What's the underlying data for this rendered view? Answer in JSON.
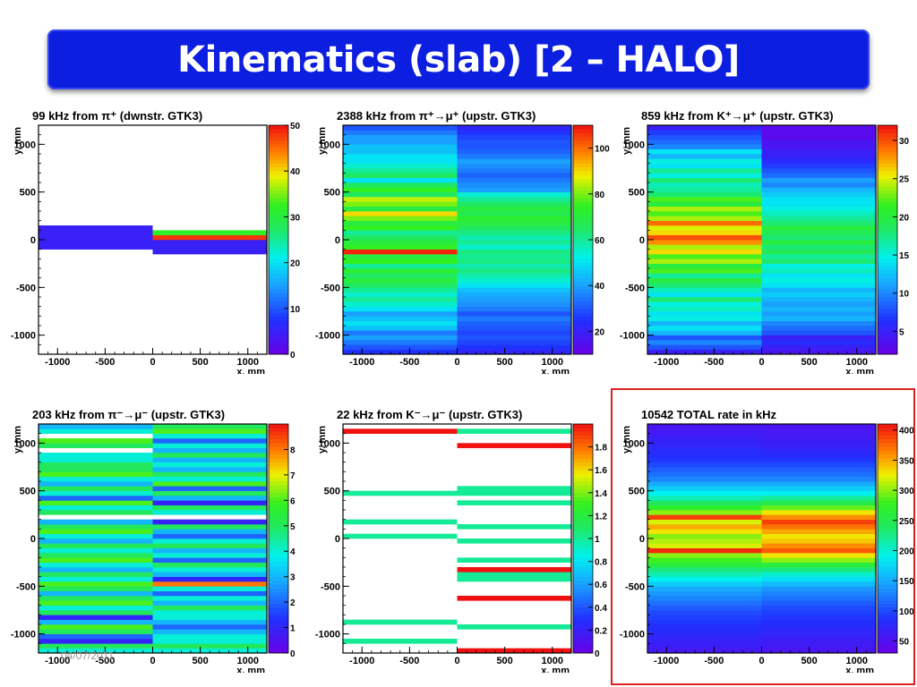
{
  "slide": {
    "title": "Kinematics (slab) [2 – HALO]",
    "footer_date": "04/07/2011"
  },
  "chart_data": [
    {
      "type": "heatmap",
      "title": "99 kHz from π⁺ (dwnstr. GTK3)",
      "xlabel": "x, mm",
      "ylabel": "y, mm",
      "xlim": [
        -1200,
        1200
      ],
      "ylim": [
        -1200,
        1200
      ],
      "x_ticks": [
        "-1000",
        "-500",
        "0",
        "500",
        "1000"
      ],
      "y_ticks": [
        "1000",
        "500",
        "0",
        "-500",
        "-1000"
      ],
      "zlim": [
        0,
        50
      ],
      "z_ticks": [
        "0",
        "10",
        "20",
        "30",
        "40",
        "50"
      ],
      "x_bins": [
        -1200,
        0,
        1200
      ],
      "y_bins": [
        -1200,
        -1150,
        -1100,
        -1050,
        -1000,
        -950,
        -900,
        -850,
        -800,
        -750,
        -700,
        -650,
        -600,
        -550,
        -500,
        -450,
        -400,
        -350,
        -300,
        -250,
        -200,
        -150,
        -100,
        -50,
        0,
        50,
        100,
        150,
        200,
        250,
        300,
        350,
        400,
        450,
        500,
        550,
        600,
        650,
        700,
        750,
        800,
        850,
        900,
        950,
        1000,
        1050,
        1100,
        1150,
        1200
      ],
      "columns": [
        [
          0,
          0,
          0,
          0,
          0,
          0,
          0,
          0,
          0,
          0,
          0,
          0,
          0,
          0,
          0,
          0,
          0,
          0,
          0,
          0,
          0,
          0,
          5,
          5,
          5,
          5,
          5,
          0,
          0,
          0,
          0,
          0,
          0,
          0,
          0,
          0,
          0,
          0,
          0,
          0,
          0,
          0,
          0,
          0,
          0,
          0,
          0,
          0
        ],
        [
          0,
          0,
          0,
          0,
          0,
          0,
          0,
          0,
          0,
          0,
          0,
          0,
          0,
          0,
          0,
          0,
          0,
          0,
          0,
          0,
          0,
          5,
          5,
          5,
          48,
          32,
          0,
          0,
          0,
          0,
          0,
          0,
          0,
          0,
          0,
          0,
          0,
          0,
          0,
          0,
          0,
          0,
          0,
          0,
          0,
          0,
          0,
          0
        ]
      ]
    },
    {
      "type": "heatmap",
      "title": "2388 kHz from π⁺→μ⁺ (upstr. GTK3)",
      "xlabel": "x, mm",
      "ylabel": "y, mm",
      "xlim": [
        -1200,
        1200
      ],
      "ylim": [
        -1200,
        1200
      ],
      "x_ticks": [
        "-1000",
        "-500",
        "0",
        "500",
        "1000"
      ],
      "y_ticks": [
        "1000",
        "500",
        "0",
        "-500",
        "-1000"
      ],
      "zlim": [
        10,
        110
      ],
      "z_ticks": [
        "20",
        "40",
        "60",
        "80",
        "100"
      ],
      "x_bins": [
        -1200,
        0,
        1200
      ],
      "y_bins": [
        -1200,
        -1150,
        -1100,
        -1050,
        -1000,
        -950,
        -900,
        -850,
        -800,
        -750,
        -700,
        -650,
        -600,
        -550,
        -500,
        -450,
        -400,
        -350,
        -300,
        -250,
        -200,
        -150,
        -100,
        -50,
        0,
        50,
        100,
        150,
        200,
        250,
        300,
        350,
        400,
        450,
        500,
        550,
        600,
        650,
        700,
        750,
        800,
        850,
        900,
        950,
        1000,
        1050,
        1100,
        1150,
        1200
      ],
      "columns": [
        [
          25,
          30,
          35,
          40,
          35,
          45,
          50,
          45,
          40,
          50,
          55,
          60,
          55,
          60,
          65,
          70,
          65,
          72,
          60,
          75,
          70,
          108,
          75,
          70,
          65,
          60,
          75,
          70,
          80,
          90,
          70,
          80,
          85,
          65,
          75,
          65,
          50,
          65,
          60,
          55,
          50,
          50,
          45,
          45,
          40,
          40,
          35,
          30
        ],
        [
          22,
          25,
          28,
          30,
          28,
          30,
          32,
          35,
          30,
          35,
          38,
          40,
          42,
          45,
          50,
          55,
          58,
          62,
          58,
          62,
          60,
          62,
          55,
          60,
          58,
          62,
          65,
          70,
          72,
          68,
          70,
          65,
          60,
          55,
          40,
          38,
          35,
          32,
          35,
          38,
          40,
          35,
          32,
          30,
          30,
          28,
          25,
          22
        ]
      ]
    },
    {
      "type": "heatmap",
      "title": "859 kHz from K⁺→μ⁺ (upstr. GTK3)",
      "xlabel": "x, mm",
      "ylabel": "y, mm",
      "xlim": [
        -1200,
        1200
      ],
      "ylim": [
        -1200,
        1200
      ],
      "x_ticks": [
        "-1000",
        "-500",
        "0",
        "500",
        "1000"
      ],
      "y_ticks": [
        "1000",
        "500",
        "0",
        "-500",
        "-1000"
      ],
      "zlim": [
        2,
        32
      ],
      "z_ticks": [
        "5",
        "10",
        "15",
        "20",
        "25",
        "30"
      ],
      "x_bins": [
        -1200,
        0,
        1200
      ],
      "y_bins": [
        -1200,
        -1150,
        -1100,
        -1050,
        -1000,
        -950,
        -900,
        -850,
        -800,
        -750,
        -700,
        -650,
        -600,
        -550,
        -500,
        -450,
        -400,
        -350,
        -300,
        -250,
        -200,
        -150,
        -100,
        -50,
        0,
        50,
        100,
        150,
        200,
        250,
        300,
        350,
        400,
        450,
        500,
        550,
        600,
        650,
        700,
        750,
        800,
        850,
        900,
        950,
        1000,
        1050,
        1100,
        1150,
        1200
      ],
      "columns": [
        [
          5,
          8,
          10,
          8,
          12,
          14,
          12,
          15,
          14,
          16,
          15,
          18,
          14,
          16,
          18,
          20,
          17,
          22,
          20,
          24,
          22,
          26,
          24,
          28,
          30,
          26,
          25,
          29,
          24,
          22,
          24,
          20,
          22,
          18,
          17,
          16,
          18,
          15,
          17,
          14,
          15,
          12,
          14,
          10,
          9,
          8,
          7,
          5
        ],
        [
          4,
          5,
          6,
          5,
          8,
          9,
          10,
          12,
          11,
          12,
          11,
          12,
          13,
          12,
          14,
          15,
          14,
          16,
          15,
          18,
          17,
          19,
          18,
          20,
          18,
          19,
          20,
          18,
          17,
          16,
          15,
          14,
          14,
          13,
          12,
          10,
          11,
          9,
          8,
          7,
          6,
          5,
          5,
          4,
          4,
          3,
          3,
          3
        ]
      ]
    },
    {
      "type": "heatmap",
      "title": "203 kHz from π⁻→μ⁻ (upstr. GTK3)",
      "xlabel": "x, mm",
      "ylabel": "y, mm",
      "xlim": [
        -1200,
        1200
      ],
      "ylim": [
        -1200,
        1200
      ],
      "x_ticks": [
        "-1000",
        "-500",
        "0",
        "500",
        "1000"
      ],
      "y_ticks": [
        "1000",
        "500",
        "0",
        "-500",
        "-1000"
      ],
      "zlim": [
        0,
        9
      ],
      "z_ticks": [
        "0",
        "1",
        "2",
        "3",
        "4",
        "5",
        "6",
        "7",
        "8"
      ],
      "x_bins": [
        -1200,
        0,
        1200
      ],
      "y_bins": [
        -1200,
        -1150,
        -1100,
        -1050,
        -1000,
        -950,
        -900,
        -850,
        -800,
        -750,
        -700,
        -650,
        -600,
        -550,
        -500,
        -450,
        -400,
        -350,
        -300,
        -250,
        -200,
        -150,
        -100,
        -50,
        0,
        50,
        100,
        150,
        200,
        250,
        300,
        350,
        400,
        450,
        500,
        550,
        600,
        650,
        700,
        750,
        800,
        850,
        900,
        950,
        1000,
        1050,
        1100,
        1150,
        1200
      ],
      "columns": [
        [
          4,
          5,
          1,
          2,
          5,
          6,
          3,
          1,
          5,
          4,
          6,
          5,
          3,
          5,
          6,
          4,
          5,
          3,
          4,
          6,
          5,
          4,
          5,
          3,
          4,
          6,
          5,
          3,
          0,
          5,
          4,
          6,
          2,
          4,
          5,
          3,
          4,
          6,
          5,
          5,
          4,
          4,
          0,
          5,
          6,
          0,
          4,
          3
        ],
        [
          4,
          5,
          4,
          4,
          3,
          2,
          3,
          4,
          4,
          5,
          3,
          4,
          2,
          4,
          8,
          1,
          3,
          4,
          5,
          2,
          4,
          3,
          5,
          4,
          2,
          3,
          5,
          1,
          0,
          4,
          5,
          1,
          3,
          5,
          2,
          6,
          4,
          5,
          3,
          4,
          3,
          5,
          3,
          4,
          2,
          4,
          6,
          5
        ]
      ]
    },
    {
      "type": "heatmap",
      "title": "22 kHz from K⁻→μ⁻ (upstr. GTK3)",
      "xlabel": "x, mm",
      "ylabel": "y, mm",
      "xlim": [
        -1200,
        1200
      ],
      "ylim": [
        -1200,
        1200
      ],
      "x_ticks": [
        "-1000",
        "-500",
        "0",
        "500",
        "1000"
      ],
      "y_ticks": [
        "1000",
        "500",
        "0",
        "-500",
        "-1000"
      ],
      "zlim": [
        0,
        2
      ],
      "z_ticks": [
        "0",
        "0.2",
        "0.4",
        "0.6",
        "0.8",
        "1",
        "1.2",
        "1.4",
        "1.6",
        "1.8"
      ],
      "x_bins": [
        -1200,
        0,
        1200
      ],
      "y_bins": [
        -1200,
        -1150,
        -1100,
        -1050,
        -1000,
        -950,
        -900,
        -850,
        -800,
        -750,
        -700,
        -650,
        -600,
        -550,
        -500,
        -450,
        -400,
        -350,
        -300,
        -250,
        -200,
        -150,
        -100,
        -50,
        0,
        50,
        100,
        150,
        200,
        250,
        300,
        350,
        400,
        450,
        500,
        550,
        600,
        650,
        700,
        750,
        800,
        850,
        900,
        950,
        1000,
        1050,
        1100,
        1150,
        1200
      ],
      "columns": [
        [
          0,
          0,
          1,
          0,
          0,
          0,
          1,
          0,
          0,
          0,
          0,
          0,
          0,
          0,
          0,
          0,
          0,
          0,
          0,
          0,
          0,
          0,
          0,
          0,
          1,
          0,
          0,
          1,
          0,
          0,
          0,
          0,
          0,
          1,
          0,
          0,
          0,
          0,
          0,
          0,
          0,
          0,
          0,
          0,
          0,
          0,
          2,
          0
        ],
        [
          2,
          0,
          0,
          0,
          0,
          1,
          0,
          0,
          0,
          0,
          0,
          2,
          0,
          0,
          0,
          1,
          1,
          2,
          0,
          1,
          0,
          0,
          0,
          1,
          0,
          0,
          1,
          0,
          0,
          0,
          0,
          1,
          0,
          1,
          1,
          0,
          0,
          0,
          0,
          0,
          0,
          0,
          0,
          2,
          0,
          0,
          1,
          0
        ]
      ]
    },
    {
      "type": "heatmap",
      "title": "10542 TOTAL rate in kHz",
      "xlabel": "x, mm",
      "ylabel": "y, mm",
      "xlim": [
        -1200,
        1200
      ],
      "ylim": [
        -1200,
        1200
      ],
      "x_ticks": [
        "-1000",
        "-500",
        "0",
        "500",
        "1000"
      ],
      "y_ticks": [
        "1000",
        "500",
        "0",
        "-500",
        "-1000"
      ],
      "zlim": [
        30,
        410
      ],
      "z_ticks": [
        "50",
        "100",
        "150",
        "200",
        "250",
        "300",
        "350",
        "400"
      ],
      "x_bins": [
        -1200,
        0,
        1200
      ],
      "y_bins": [
        -1200,
        -1150,
        -1100,
        -1050,
        -1000,
        -950,
        -900,
        -850,
        -800,
        -750,
        -700,
        -650,
        -600,
        -550,
        -500,
        -450,
        -400,
        -350,
        -300,
        -250,
        -200,
        -150,
        -100,
        -50,
        0,
        50,
        100,
        150,
        200,
        250,
        300,
        350,
        400,
        450,
        500,
        550,
        600,
        650,
        700,
        750,
        800,
        850,
        900,
        950,
        1000,
        1050,
        1100,
        1150,
        1200
      ],
      "columns": [
        [
          60,
          65,
          70,
          75,
          80,
          85,
          90,
          95,
          100,
          110,
          120,
          130,
          140,
          150,
          170,
          190,
          210,
          230,
          260,
          280,
          300,
          400,
          320,
          310,
          300,
          330,
          350,
          320,
          390,
          300,
          270,
          240,
          210,
          190,
          170,
          150,
          130,
          120,
          110,
          100,
          90,
          85,
          80,
          75,
          70,
          65,
          60,
          55
        ],
        [
          55,
          60,
          65,
          70,
          75,
          80,
          85,
          90,
          95,
          100,
          110,
          120,
          130,
          140,
          160,
          180,
          200,
          230,
          260,
          300,
          330,
          380,
          360,
          340,
          330,
          350,
          370,
          390,
          360,
          330,
          290,
          250,
          220,
          190,
          170,
          150,
          130,
          120,
          110,
          100,
          90,
          80,
          75,
          70,
          65,
          60,
          58,
          55
        ]
      ]
    }
  ]
}
